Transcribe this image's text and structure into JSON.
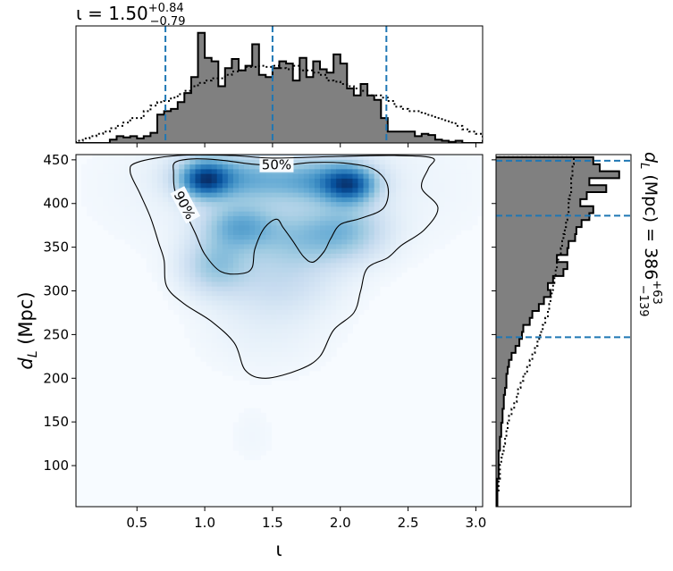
{
  "chart_data": [
    {
      "panel": "top marginal histogram",
      "type": "histogram",
      "title": "ι = 1.50",
      "title_sup": "+0.84",
      "title_sub": "−0.79",
      "x_param": "ι",
      "xlim": [
        0.05,
        3.05
      ],
      "bin_edges": [
        0.05,
        0.1,
        0.15,
        0.2,
        0.25,
        0.3,
        0.35,
        0.4,
        0.45,
        0.5,
        0.55,
        0.6,
        0.65,
        0.7,
        0.75,
        0.8,
        0.85,
        0.9,
        0.95,
        1.0,
        1.05,
        1.1,
        1.15,
        1.2,
        1.25,
        1.3,
        1.35,
        1.4,
        1.45,
        1.5,
        1.55,
        1.6,
        1.65,
        1.7,
        1.75,
        1.8,
        1.85,
        1.9,
        1.95,
        2.0,
        2.05,
        2.1,
        2.15,
        2.2,
        2.25,
        2.3,
        2.35,
        2.4,
        2.45,
        2.5,
        2.55,
        2.6,
        2.65,
        2.7,
        2.75,
        2.8,
        2.85,
        2.9,
        2.95,
        3.0,
        3.05
      ],
      "series": [
        {
          "style": "filled gray step",
          "values": [
            0,
            0,
            0,
            0,
            0,
            0.03,
            0.06,
            0.05,
            0.06,
            0.04,
            0.06,
            0.09,
            0.25,
            0.28,
            0.3,
            0.36,
            0.44,
            0.58,
            0.97,
            0.75,
            0.72,
            0.5,
            0.66,
            0.74,
            0.64,
            0.68,
            0.87,
            0.6,
            0.58,
            0.66,
            0.72,
            0.7,
            0.55,
            0.75,
            0.58,
            0.72,
            0.65,
            0.62,
            0.78,
            0.7,
            0.48,
            0.42,
            0.52,
            0.42,
            0.38,
            0.22,
            0.1,
            0.1,
            0.1,
            0.1,
            0.06,
            0.08,
            0.07,
            0.03,
            0.02,
            0.01,
            0.02,
            0.0,
            0.0,
            0.0
          ]
        },
        {
          "style": "dotted line",
          "values": [
            0.02,
            0.04,
            0.06,
            0.08,
            0.1,
            0.13,
            0.15,
            0.18,
            0.22,
            0.22,
            0.28,
            0.33,
            0.36,
            0.37,
            0.4,
            0.43,
            0.46,
            0.5,
            0.53,
            0.55,
            0.57,
            0.57,
            0.6,
            0.63,
            0.64,
            0.67,
            0.67,
            0.68,
            0.67,
            0.68,
            0.66,
            0.65,
            0.68,
            0.64,
            0.64,
            0.62,
            0.6,
            0.55,
            0.54,
            0.52,
            0.5,
            0.48,
            0.46,
            0.42,
            0.42,
            0.4,
            0.37,
            0.32,
            0.3,
            0.28,
            0.28,
            0.26,
            0.24,
            0.22,
            0.2,
            0.18,
            0.15,
            0.12,
            0.1,
            0.08
          ]
        }
      ],
      "quantile_lines": [
        0.71,
        1.5,
        2.34
      ]
    },
    {
      "panel": "2D posterior density",
      "type": "heatmap",
      "xlabel": "ι",
      "ylabel": "d_L (Mpc)",
      "ylabel_main": "d",
      "ylabel_sub": "L",
      "ylabel_rest": " (Mpc)",
      "xlim": [
        0.05,
        3.05
      ],
      "ylim": [
        53,
        456
      ],
      "xticks": [
        0.5,
        1.0,
        1.5,
        2.0,
        2.5,
        3.0
      ],
      "xtick_labels": [
        "0.5",
        "1.0",
        "1.5",
        "2.0",
        "2.5",
        "3.0"
      ],
      "yticks": [
        100,
        150,
        200,
        250,
        300,
        350,
        400,
        450
      ],
      "ytick_labels": [
        "100",
        "150",
        "200",
        "250",
        "300",
        "350",
        "400",
        "450"
      ],
      "blobs": [
        {
          "x": 1.0,
          "y": 428,
          "sx": 0.12,
          "sy": 14,
          "w": 1.0
        },
        {
          "x": 1.15,
          "y": 432,
          "sx": 0.25,
          "sy": 18,
          "w": 0.45
        },
        {
          "x": 2.07,
          "y": 422,
          "sx": 0.13,
          "sy": 14,
          "w": 0.95
        },
        {
          "x": 1.9,
          "y": 428,
          "sx": 0.22,
          "sy": 17,
          "w": 0.45
        },
        {
          "x": 1.55,
          "y": 425,
          "sx": 0.3,
          "sy": 16,
          "w": 0.3
        },
        {
          "x": 1.25,
          "y": 375,
          "sx": 0.18,
          "sy": 18,
          "w": 0.55
        },
        {
          "x": 1.08,
          "y": 330,
          "sx": 0.17,
          "sy": 22,
          "w": 0.45
        },
        {
          "x": 1.7,
          "y": 360,
          "sx": 0.28,
          "sy": 24,
          "w": 0.4
        },
        {
          "x": 2.05,
          "y": 370,
          "sx": 0.2,
          "sy": 22,
          "w": 0.38
        },
        {
          "x": 1.55,
          "y": 310,
          "sx": 0.28,
          "sy": 25,
          "w": 0.22
        },
        {
          "x": 1.45,
          "y": 260,
          "sx": 0.32,
          "sy": 35,
          "w": 0.08
        },
        {
          "x": 1.35,
          "y": 135,
          "sx": 0.12,
          "sy": 25,
          "w": 0.03
        },
        {
          "x": 1.6,
          "y": 420,
          "sx": 0.75,
          "sy": 50,
          "w": 0.12
        }
      ],
      "contours": [
        {
          "label": "50%",
          "label_at": [
            1.53,
            444
          ],
          "points": [
            [
              0.78,
              447
            ],
            [
              0.9,
              451
            ],
            [
              1.1,
              450
            ],
            [
              1.3,
              446
            ],
            [
              1.45,
              444
            ],
            [
              1.6,
              444
            ],
            [
              1.8,
              447
            ],
            [
              2.05,
              446
            ],
            [
              2.25,
              439
            ],
            [
              2.35,
              420
            ],
            [
              2.32,
              395
            ],
            [
              2.15,
              383
            ],
            [
              2.0,
              376
            ],
            [
              1.93,
              360
            ],
            [
              1.88,
              345
            ],
            [
              1.8,
              333
            ],
            [
              1.73,
              339
            ],
            [
              1.65,
              357
            ],
            [
              1.58,
              372
            ],
            [
              1.53,
              382
            ],
            [
              1.44,
              372
            ],
            [
              1.37,
              348
            ],
            [
              1.35,
              327
            ],
            [
              1.28,
              320
            ],
            [
              1.12,
              322
            ],
            [
              1.0,
              342
            ],
            [
              0.93,
              366
            ],
            [
              0.85,
              392
            ],
            [
              0.78,
              415
            ],
            [
              0.77,
              435
            ]
          ]
        },
        {
          "label": "90%",
          "label_at": [
            0.85,
            398
          ],
          "points": [
            [
              0.45,
              436
            ],
            [
              0.5,
              447
            ],
            [
              0.8,
              455
            ],
            [
              1.2,
              455
            ],
            [
              1.5,
              452
            ],
            [
              2.0,
              454
            ],
            [
              2.4,
              455
            ],
            [
              2.68,
              452
            ],
            [
              2.65,
              440
            ],
            [
              2.6,
              418
            ],
            [
              2.72,
              395
            ],
            [
              2.62,
              370
            ],
            [
              2.45,
              352
            ],
            [
              2.35,
              338
            ],
            [
              2.2,
              326
            ],
            [
              2.15,
              300
            ],
            [
              2.1,
              275
            ],
            [
              1.95,
              255
            ],
            [
              1.85,
              225
            ],
            [
              1.7,
              210
            ],
            [
              1.45,
              200
            ],
            [
              1.3,
              209
            ],
            [
              1.22,
              240
            ],
            [
              1.05,
              265
            ],
            [
              0.85,
              285
            ],
            [
              0.72,
              305
            ],
            [
              0.7,
              335
            ],
            [
              0.66,
              355
            ],
            [
              0.6,
              384
            ],
            [
              0.52,
              412
            ]
          ]
        }
      ]
    },
    {
      "panel": "right marginal histogram",
      "type": "histogram",
      "orientation": "horizontal",
      "title": "d_L (Mpc) = 386",
      "title_main": "d",
      "title_sub": "L",
      "title_rest": " (Mpc) = 386",
      "title_sup_value": "+63",
      "title_sub_value": "−139",
      "ylim": [
        53,
        456
      ],
      "bin_edges": [
        53,
        61,
        69,
        77,
        85,
        93,
        101,
        109,
        117,
        125,
        133,
        141,
        149,
        157,
        165,
        173,
        181,
        189,
        197,
        205,
        213,
        221,
        229,
        237,
        245,
        253,
        261,
        269,
        277,
        285,
        293,
        301,
        309,
        317,
        325,
        333,
        341,
        349,
        357,
        365,
        373,
        381,
        389,
        397,
        405,
        413,
        421,
        429,
        437,
        445,
        453
      ],
      "series": [
        {
          "style": "filled gray step",
          "values": [
            0.01,
            0.01,
            0.01,
            0.01,
            0.02,
            0.02,
            0.02,
            0.02,
            0.03,
            0.03,
            0.04,
            0.04,
            0.05,
            0.05,
            0.06,
            0.06,
            0.07,
            0.08,
            0.08,
            0.09,
            0.1,
            0.12,
            0.15,
            0.18,
            0.2,
            0.21,
            0.26,
            0.28,
            0.33,
            0.37,
            0.42,
            0.4,
            0.44,
            0.52,
            0.55,
            0.47,
            0.55,
            0.56,
            0.61,
            0.62,
            0.66,
            0.72,
            0.75,
            0.65,
            0.7,
            0.85,
            0.72,
            0.95,
            0.8,
            0.75
          ]
        },
        {
          "style": "dotted line",
          "values": [
            0.01,
            0.01,
            0.02,
            0.02,
            0.03,
            0.03,
            0.04,
            0.05,
            0.06,
            0.07,
            0.08,
            0.09,
            0.1,
            0.12,
            0.14,
            0.16,
            0.17,
            0.19,
            0.21,
            0.24,
            0.26,
            0.28,
            0.3,
            0.32,
            0.34,
            0.36,
            0.38,
            0.4,
            0.41,
            0.42,
            0.43,
            0.44,
            0.45,
            0.46,
            0.47,
            0.48,
            0.5,
            0.51,
            0.52,
            0.53,
            0.54,
            0.55,
            0.56,
            0.56,
            0.57,
            0.58,
            0.58,
            0.59,
            0.59,
            0.6
          ]
        }
      ],
      "quantile_lines": [
        247,
        386,
        449
      ]
    }
  ],
  "colors": {
    "quantile_line": "#1f77b4",
    "histogram_fill": "#808080",
    "cmap_dark": "#08306b",
    "cmap_light": "#f7fbff"
  }
}
